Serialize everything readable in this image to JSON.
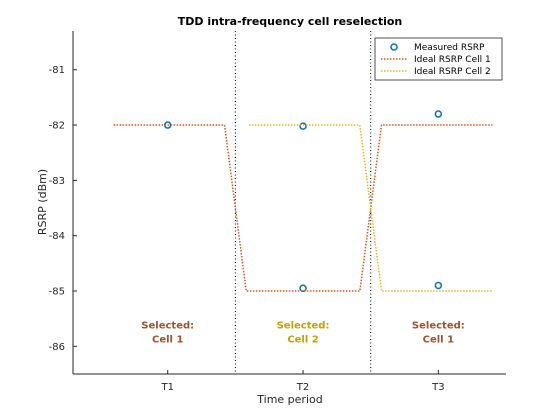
{
  "chart_data": {
    "type": "line",
    "title": "TDD intra-frequency cell reselection",
    "xlabel": "Time period",
    "ylabel": "RSRP (dBm)",
    "categories": [
      "T1",
      "T2",
      "T3"
    ],
    "xlim": [
      0.3,
      3.5
    ],
    "ylim": [
      -86.5,
      -80.3
    ],
    "yticks": [
      -86,
      -85,
      -84,
      -83,
      -82,
      -81
    ],
    "grid": false,
    "legend_position": "top-right",
    "period_boundaries": [
      1.5,
      2.5
    ],
    "series": [
      {
        "name": "Measured RSRP",
        "kind": "markers",
        "marker": "circle",
        "color": "#0072BD",
        "x": [
          1,
          2,
          2,
          3,
          3
        ],
        "y": [
          -82.0,
          -82.02,
          -84.95,
          -81.8,
          -84.9
        ]
      },
      {
        "name": "Ideal RSRP Cell 1",
        "kind": "line",
        "style": "dotted",
        "color": "#D95319",
        "x": [
          0.6,
          1.42,
          1.58,
          2.42,
          2.58,
          3.4
        ],
        "y": [
          -82,
          -82,
          -85,
          -85,
          -82,
          -82
        ]
      },
      {
        "name": "Ideal RSRP Cell 2",
        "kind": "line",
        "style": "dotted",
        "color": "#EDB120",
        "x": [
          1.6,
          2.42,
          2.58,
          3.4
        ],
        "y": [
          -82,
          -82,
          -85,
          -85
        ]
      }
    ],
    "annotations": [
      {
        "line1": "Selected:",
        "line2": "Cell 1",
        "x": 1,
        "y": -85.75,
        "color": "#A0522D"
      },
      {
        "line1": "Selected:",
        "line2": "Cell 2",
        "x": 2,
        "y": -85.75,
        "color": "#C8A000"
      },
      {
        "line1": "Selected:",
        "line2": "Cell 1",
        "x": 3,
        "y": -85.75,
        "color": "#A0522D"
      }
    ]
  }
}
